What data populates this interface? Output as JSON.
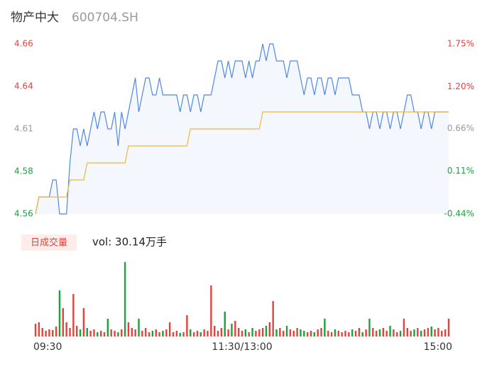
{
  "chart_data": {
    "type": "line",
    "title": "物产中大",
    "subtitle": "600704.SH",
    "up_color": "#e8413a",
    "down_color": "#1aa33a",
    "flat_color": "#999999",
    "xlim": [
      0,
      240
    ],
    "xticks": [
      {
        "value": 0,
        "label": "09:30"
      },
      {
        "value": 120,
        "label": "11:30/13:00"
      },
      {
        "value": 240,
        "label": "15:00"
      }
    ],
    "ylim": [
      4.56,
      4.66
    ],
    "yticks": [
      4.56,
      {
        "value": 4.585,
        "label": "4.58"
      },
      4.61,
      {
        "value": 4.635,
        "label": "4.64"
      },
      4.66
    ],
    "y2lim": [
      -0.44,
      1.75
    ],
    "y2ticks": [
      {
        "value": -0.44,
        "label": "-0.44%"
      },
      {
        "value": 0.11,
        "label": "0.11%"
      },
      {
        "value": 0.66,
        "label": "0.66%"
      },
      {
        "value": 1.2,
        "label": "1.20%"
      },
      {
        "value": 1.75,
        "label": "1.75%"
      }
    ],
    "area_color": "#f4f7fd",
    "x": [
      0,
      2,
      4,
      6,
      8,
      10,
      12,
      14,
      16,
      18,
      20,
      22,
      24,
      26,
      28,
      30,
      32,
      34,
      36,
      38,
      40,
      42,
      44,
      46,
      48,
      50,
      52,
      54,
      56,
      58,
      60,
      62,
      64,
      66,
      68,
      70,
      72,
      74,
      76,
      78,
      80,
      82,
      84,
      86,
      88,
      90,
      92,
      94,
      96,
      98,
      100,
      102,
      104,
      106,
      108,
      110,
      112,
      114,
      116,
      118,
      120,
      122,
      124,
      126,
      128,
      130,
      132,
      134,
      136,
      138,
      140,
      142,
      144,
      146,
      148,
      150,
      152,
      154,
      156,
      158,
      160,
      162,
      164,
      166,
      168,
      170,
      172,
      174,
      176,
      178,
      180,
      182,
      184,
      186,
      188,
      190,
      192,
      194,
      196,
      198,
      200,
      202,
      204,
      206,
      208,
      210,
      212,
      214,
      216,
      218,
      220,
      222,
      224,
      226,
      228,
      230,
      232,
      234,
      236,
      238,
      240
    ],
    "series": [
      {
        "color": "#4f87e8",
        "values": [
          4.56,
          4.57,
          4.57,
          4.57,
          4.57,
          4.58,
          4.58,
          4.56,
          4.56,
          4.56,
          4.59,
          4.61,
          4.61,
          4.6,
          4.61,
          4.6,
          4.61,
          4.62,
          4.61,
          4.62,
          4.62,
          4.61,
          4.61,
          4.62,
          4.6,
          4.62,
          4.61,
          4.62,
          4.63,
          4.64,
          4.62,
          4.63,
          4.64,
          4.64,
          4.63,
          4.63,
          4.64,
          4.63,
          4.63,
          4.63,
          4.63,
          4.63,
          4.62,
          4.63,
          4.63,
          4.62,
          4.63,
          4.63,
          4.62,
          4.63,
          4.63,
          4.63,
          4.64,
          4.65,
          4.65,
          4.64,
          4.65,
          4.64,
          4.65,
          4.65,
          4.65,
          4.64,
          4.65,
          4.64,
          4.65,
          4.65,
          4.66,
          4.65,
          4.66,
          4.66,
          4.65,
          4.65,
          4.65,
          4.64,
          4.65,
          4.65,
          4.65,
          4.64,
          4.63,
          4.64,
          4.64,
          4.63,
          4.64,
          4.64,
          4.63,
          4.64,
          4.64,
          4.63,
          4.64,
          4.64,
          4.64,
          4.64,
          4.63,
          4.63,
          4.63,
          4.62,
          4.62,
          4.61,
          4.62,
          4.62,
          4.61,
          4.62,
          4.62,
          4.61,
          4.62,
          4.62,
          4.61,
          4.62,
          4.63,
          4.63,
          4.62,
          4.62,
          4.61,
          4.62,
          4.62,
          4.61,
          4.62,
          4.62,
          4.62,
          4.62,
          4.62
        ]
      },
      {
        "color": "#f0b73d",
        "values": [
          4.56,
          4.57,
          4.57,
          4.57,
          4.57,
          4.57,
          4.57,
          4.57,
          4.57,
          4.57,
          4.58,
          4.58,
          4.58,
          4.58,
          4.58,
          4.59,
          4.59,
          4.59,
          4.59,
          4.59,
          4.59,
          4.59,
          4.59,
          4.59,
          4.59,
          4.59,
          4.59,
          4.6,
          4.6,
          4.6,
          4.6,
          4.6,
          4.6,
          4.6,
          4.6,
          4.6,
          4.6,
          4.6,
          4.6,
          4.6,
          4.6,
          4.6,
          4.6,
          4.6,
          4.6,
          4.61,
          4.61,
          4.61,
          4.61,
          4.61,
          4.61,
          4.61,
          4.61,
          4.61,
          4.61,
          4.61,
          4.61,
          4.61,
          4.61,
          4.61,
          4.61,
          4.61,
          4.61,
          4.61,
          4.61,
          4.61,
          4.62,
          4.62,
          4.62,
          4.62,
          4.62,
          4.62,
          4.62,
          4.62,
          4.62,
          4.62,
          4.62,
          4.62,
          4.62,
          4.62,
          4.62,
          4.62,
          4.62,
          4.62,
          4.62,
          4.62,
          4.62,
          4.62,
          4.62,
          4.62,
          4.62,
          4.62,
          4.62,
          4.62,
          4.62,
          4.62,
          4.62,
          4.62,
          4.62,
          4.62,
          4.62,
          4.62,
          4.62,
          4.62,
          4.62,
          4.62,
          4.62,
          4.62,
          4.62,
          4.62,
          4.62,
          4.62,
          4.62,
          4.62,
          4.62,
          4.62,
          4.62,
          4.62,
          4.62,
          4.62,
          4.62
        ]
      }
    ],
    "volume": {
      "label": "日成交量",
      "text": "vol: 30.14万手",
      "badge_color": "#fdecea",
      "values": [
        5400,
        6000,
        3600,
        2400,
        3000,
        2700,
        4200,
        19500,
        12000,
        6000,
        3600,
        18000,
        4500,
        3000,
        12000,
        3600,
        2400,
        3000,
        1800,
        2400,
        1800,
        7500,
        3000,
        2400,
        1800,
        3000,
        31500,
        6000,
        3600,
        3000,
        7500,
        2400,
        3600,
        1800,
        2400,
        3000,
        1800,
        2400,
        3000,
        6000,
        1800,
        2400,
        1500,
        1800,
        9000,
        3000,
        1800,
        2400,
        1800,
        3000,
        2400,
        21600,
        4500,
        2400,
        3600,
        10500,
        3000,
        5400,
        6600,
        3600,
        2400,
        3000,
        1800,
        3600,
        2400,
        3000,
        3600,
        4500,
        6000,
        15000,
        3000,
        3600,
        2400,
        4500,
        3000,
        2400,
        3600,
        3000,
        2400,
        1800,
        2400,
        1800,
        3000,
        3600,
        7500,
        2400,
        1800,
        3000,
        2400,
        1800,
        2400,
        1800,
        3000,
        2400,
        3600,
        1800,
        3000,
        7500,
        3600,
        2400,
        3000,
        3600,
        2400,
        4500,
        3000,
        1800,
        2400,
        7500,
        3600,
        2400,
        3000,
        3600,
        2400,
        3000,
        3600,
        4200,
        3000,
        3600,
        2400,
        3000,
        7500
      ]
    }
  }
}
